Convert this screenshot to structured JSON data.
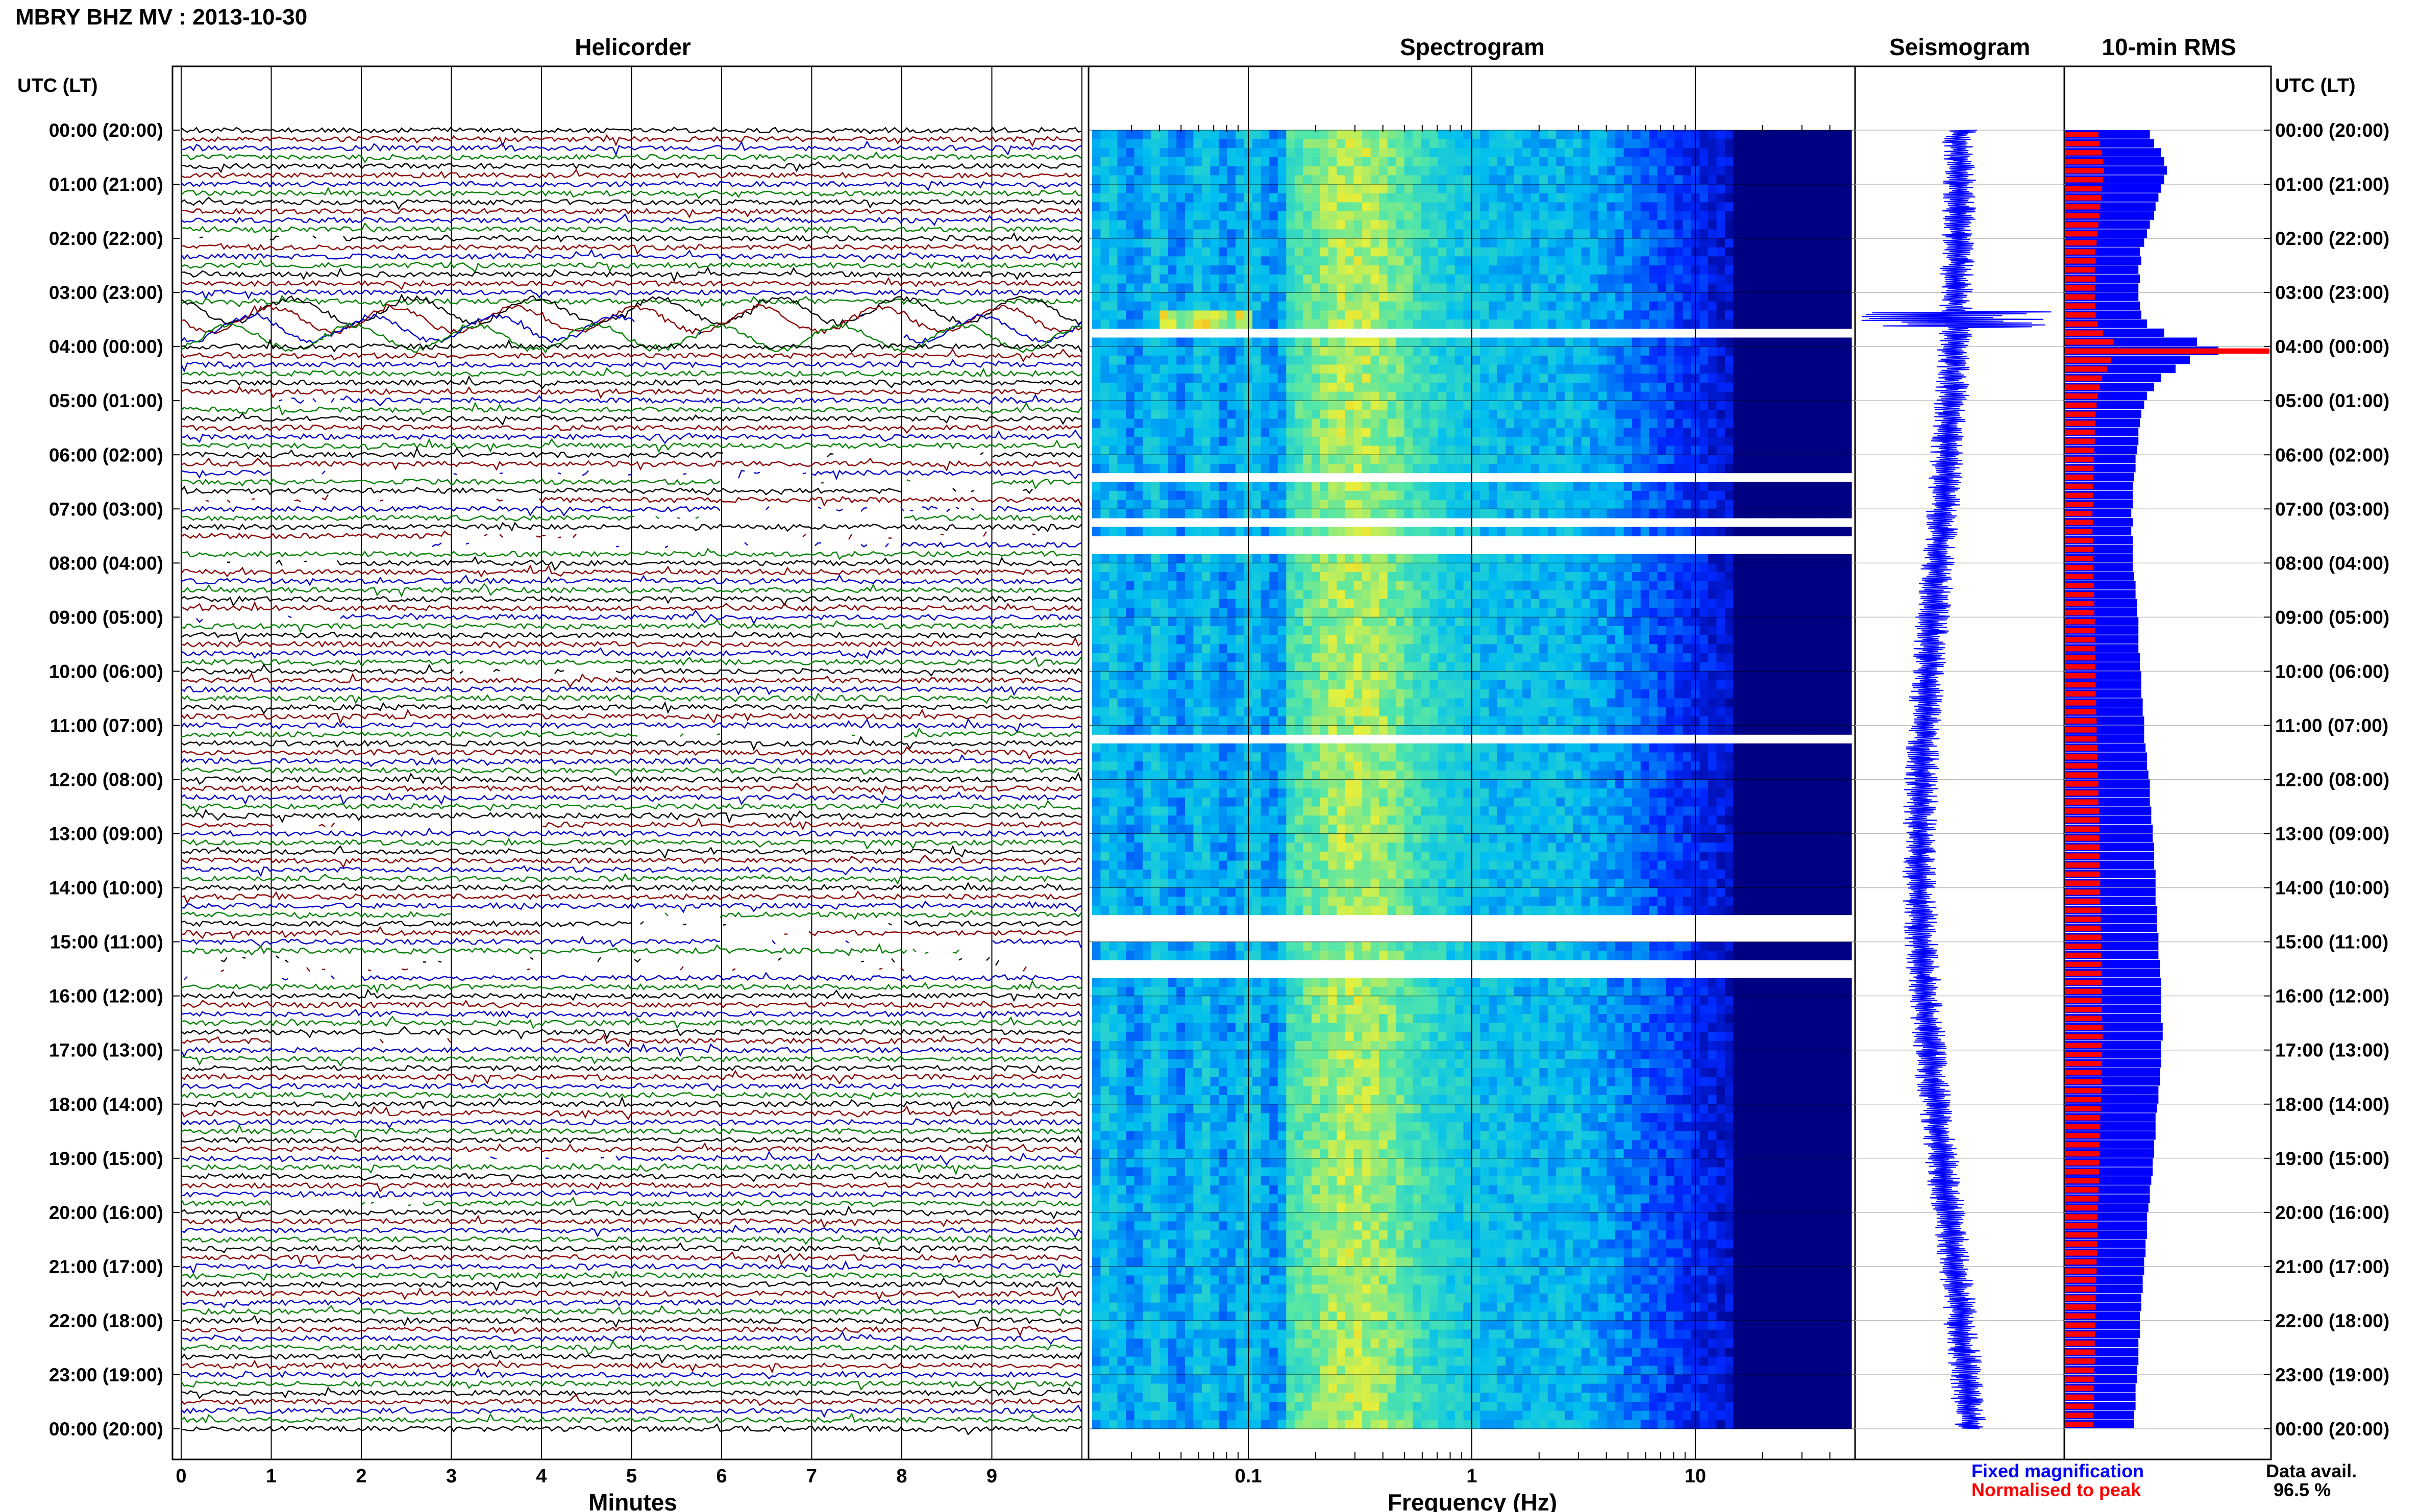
{
  "title": "MBRY BHZ MV : 2013-10-30",
  "panels": {
    "helicorder": "Helicorder",
    "spectrogram": "Spectrogram",
    "seismogram": "Seismogram",
    "rms": "10-min RMS"
  },
  "time_axis_label": "UTC (LT)",
  "time_labels": [
    "00:00 (20:00)",
    "01:00 (21:00)",
    "02:00 (22:00)",
    "03:00 (23:00)",
    "04:00 (00:00)",
    "05:00 (01:00)",
    "06:00 (02:00)",
    "07:00 (03:00)",
    "08:00 (04:00)",
    "09:00 (05:00)",
    "10:00 (06:00)",
    "11:00 (07:00)",
    "12:00 (08:00)",
    "13:00 (09:00)",
    "14:00 (10:00)",
    "15:00 (11:00)",
    "16:00 (12:00)",
    "17:00 (13:00)",
    "18:00 (14:00)",
    "19:00 (15:00)",
    "20:00 (16:00)",
    "21:00 (17:00)",
    "22:00 (18:00)",
    "23:00 (19:00)",
    "00:00 (20:00)"
  ],
  "minutes_ticks": [
    "0",
    "1",
    "2",
    "3",
    "4",
    "5",
    "6",
    "7",
    "8",
    "9"
  ],
  "minutes_label": "Minutes",
  "freq_ticks": [
    "0.1",
    "1",
    "10"
  ],
  "freq_label": "Frequency (Hz)",
  "legend": {
    "fixed": "Fixed magnification",
    "normalised": "Normalised to peak",
    "fixed_color": "#0000ff",
    "normalised_color": "#ff0000"
  },
  "availability": {
    "label": "Data avail.",
    "value": "96.5 %"
  },
  "trace_colors": [
    "#000000",
    "#8b0000",
    "#0000cd",
    "#008000"
  ],
  "chart_data": {
    "type": "heatmap",
    "hours": 24,
    "rows_per_hour": 6,
    "rms_fixed_relative": [
      0.52,
      0.55,
      0.6,
      0.62,
      0.64,
      0.62,
      0.6,
      0.58,
      0.56,
      0.55,
      0.52,
      0.5,
      0.48,
      0.45,
      0.46,
      0.44,
      0.45,
      0.44,
      0.44,
      0.45,
      0.46,
      0.5,
      0.62,
      0.85,
      1.0,
      0.8,
      0.7,
      0.6,
      0.55,
      0.5,
      0.48,
      0.46,
      0.45,
      0.44,
      0.44,
      0.43,
      0.42,
      0.42,
      0.41,
      0.4,
      0.4,
      0.4,
      0.39,
      0.4,
      0.39,
      0.4,
      0.4,
      0.4,
      0.4,
      0.41,
      0.42,
      0.42,
      0.43,
      0.43,
      0.44,
      0.44,
      0.44,
      0.44,
      0.45,
      0.45,
      0.46,
      0.46,
      0.46,
      0.47,
      0.47,
      0.48,
      0.48,
      0.48,
      0.49,
      0.5,
      0.5,
      0.51,
      0.52,
      0.52,
      0.52,
      0.53,
      0.53,
      0.54,
      0.54,
      0.55,
      0.55,
      0.55,
      0.56,
      0.56,
      0.56,
      0.56,
      0.57,
      0.57,
      0.57,
      0.58,
      0.58,
      0.58,
      0.59,
      0.59,
      0.6,
      0.6,
      0.6,
      0.6,
      0.6,
      0.61,
      0.61,
      0.6,
      0.6,
      0.6,
      0.59,
      0.59,
      0.58,
      0.58,
      0.57,
      0.56,
      0.56,
      0.56,
      0.55,
      0.55,
      0.54,
      0.54,
      0.53,
      0.52,
      0.52,
      0.51,
      0.5,
      0.5,
      0.5,
      0.49,
      0.49,
      0.48,
      0.48,
      0.47,
      0.47,
      0.46,
      0.46,
      0.45,
      0.45,
      0.45,
      0.44,
      0.44,
      0.44,
      0.43,
      0.43,
      0.42,
      0.42,
      0.42,
      0.41,
      0.41
    ],
    "rms_peak_hour_index": 24,
    "seismogram_event_hour": 3.5,
    "spectrogram_event": {
      "hour": 3.5,
      "freq_hz_range": [
        0.04,
        0.1
      ]
    },
    "data_gaps_hours": [
      [
        2.0,
        2.03
      ],
      [
        3.75,
        3.8
      ],
      [
        5.0,
        5.03
      ],
      [
        6.1,
        6.15
      ],
      [
        6.35,
        6.45
      ],
      [
        6.6,
        6.65
      ],
      [
        6.8,
        6.9
      ],
      [
        7.1,
        7.15
      ],
      [
        7.25,
        7.3
      ],
      [
        7.55,
        7.8
      ],
      [
        8.0,
        8.03
      ],
      [
        9.0,
        9.03
      ],
      [
        10.05,
        10.08
      ],
      [
        11.25,
        11.3
      ],
      [
        12.85,
        12.9
      ],
      [
        14.55,
        14.6
      ],
      [
        14.75,
        14.8
      ],
      [
        14.9,
        14.95
      ],
      [
        15.1,
        15.15
      ],
      [
        15.3,
        15.7
      ],
      [
        16.85,
        16.9
      ],
      [
        19.05,
        19.08
      ],
      [
        19.85,
        19.88
      ]
    ],
    "xlabel_helicorder": "Minutes",
    "xlabel_spectrogram": "Frequency (Hz)",
    "ylabel": "UTC (LT)"
  }
}
